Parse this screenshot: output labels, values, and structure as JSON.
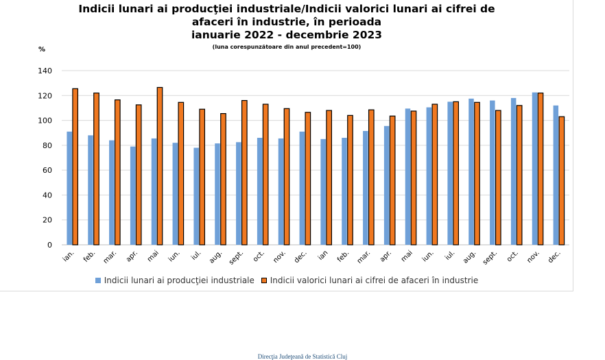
{
  "chart_data": {
    "type": "bar",
    "title_lines": [
      "Indicii lunari ai producţiei industriale/Indicii valorici lunari ai cifrei de",
      "afaceri în industrie, în perioada",
      "ianuarie 2022 - decembrie 2023"
    ],
    "subtitle": "(luna corespunzătoare din anul precedent=100)",
    "ylabel": "%",
    "ylim": [
      0,
      140
    ],
    "yticks": [
      0,
      20,
      40,
      60,
      80,
      100,
      120,
      140
    ],
    "grid": true,
    "legend_position": "bottom",
    "categories": [
      "ian.",
      "feb.",
      "mar.",
      "apr.",
      "mai",
      "iun.",
      "iul.",
      "aug.",
      "sept.",
      "oct.",
      "nov.",
      "dec.",
      "ian",
      "feb.",
      "mar.",
      "apr.",
      "mai",
      "iun.",
      "iul.",
      "aug.",
      "sept.",
      "oct.",
      "nov.",
      "dec."
    ],
    "series": [
      {
        "name": "Indicii lunari ai producţiei industriale",
        "color": "#6fa0d8",
        "values": [
          91,
          88,
          84,
          79,
          85.5,
          82,
          78,
          81.5,
          82.5,
          86,
          85.5,
          91,
          85,
          86,
          91.5,
          95.5,
          109.5,
          110.5,
          115,
          117.5,
          116,
          118,
          122.5,
          112
        ]
      },
      {
        "name": "Indicii valorici lunari ai cifrei de afaceri în industrie",
        "color": "#f07820",
        "values": [
          125.5,
          122,
          116.5,
          112.5,
          126.5,
          114.5,
          109,
          105.5,
          116,
          113,
          109.5,
          106.5,
          108,
          104,
          108.5,
          103.5,
          107.5,
          113,
          115,
          114.5,
          108,
          112,
          122,
          103
        ]
      }
    ]
  },
  "footer": "Direcţia Judeţeană de Statistică Cluj"
}
